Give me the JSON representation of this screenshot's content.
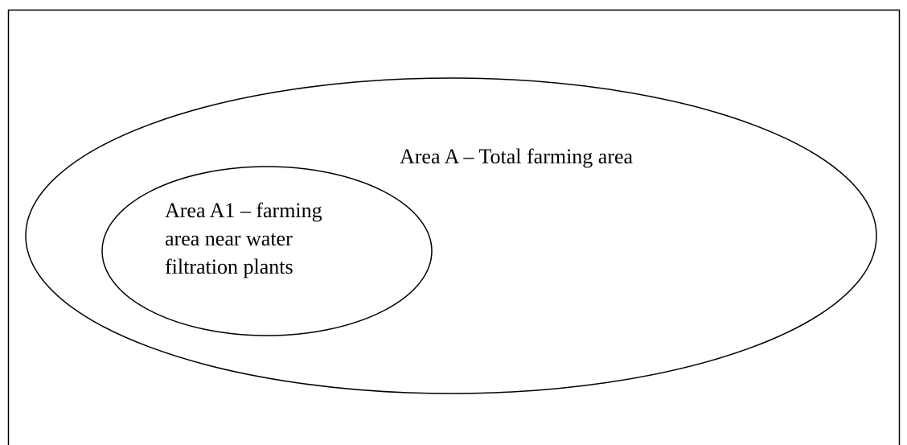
{
  "nodes": [
    {
      "label": "Area A – Total farming area"
    },
    {
      "label_lines": [
        "Area A1 – farming",
        "area near water",
        "filtration plants"
      ]
    }
  ]
}
